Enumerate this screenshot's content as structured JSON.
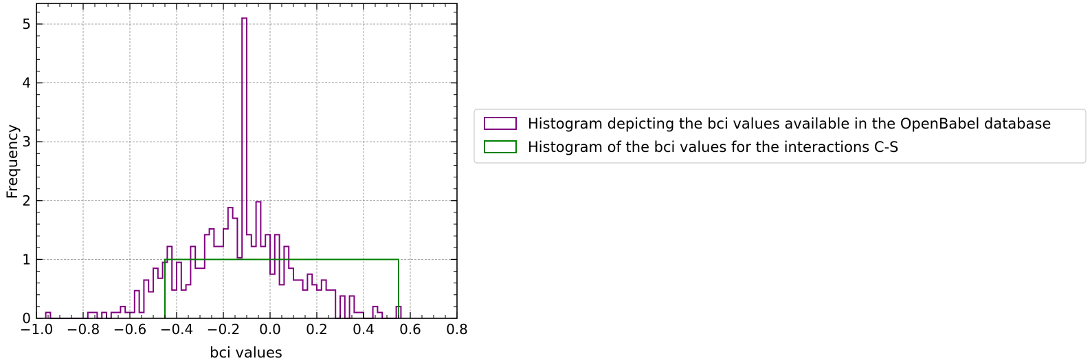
{
  "chart_data": {
    "type": "histogram",
    "xlabel": "bci values",
    "ylabel": "Frequency",
    "xlim": [
      -1.0,
      0.8
    ],
    "ylim": [
      0,
      5.35
    ],
    "grid": true,
    "legend_placement": "outside-right",
    "x_ticks": [
      -1.0,
      -0.8,
      -0.6,
      -0.4,
      -0.2,
      0.0,
      0.2,
      0.4,
      0.6,
      0.8
    ],
    "x_tick_labels": [
      "−1.0",
      "−0.8",
      "−0.6",
      "−0.4",
      "−0.2",
      "0.0",
      "0.2",
      "0.4",
      "0.6",
      "0.8"
    ],
    "y_ticks": [
      0,
      1,
      2,
      3,
      4,
      5
    ],
    "y_tick_labels": [
      "0",
      "1",
      "2",
      "3",
      "4",
      "5"
    ],
    "series": [
      {
        "name": "Histogram depicting the bci values available in the OpenBabel database",
        "color": "#800080",
        "bin_start": -0.96,
        "bin_width": 0.02,
        "values": [
          0.1,
          0.0,
          0.0,
          0.0,
          0.0,
          0.0,
          0.0,
          0.0,
          0.0,
          0.1,
          0.1,
          0.0,
          0.1,
          0.0,
          0.1,
          0.1,
          0.2,
          0.1,
          0.1,
          0.47,
          0.1,
          0.65,
          0.45,
          0.85,
          0.68,
          0.95,
          1.22,
          0.48,
          0.95,
          0.48,
          0.57,
          1.22,
          0.85,
          0.85,
          1.42,
          1.52,
          1.22,
          1.22,
          1.52,
          1.88,
          1.7,
          1.03,
          5.1,
          1.42,
          1.22,
          1.98,
          1.22,
          1.42,
          0.75,
          1.42,
          0.57,
          1.22,
          0.85,
          0.65,
          0.65,
          0.48,
          0.75,
          0.57,
          0.48,
          0.65,
          0.48,
          0.48,
          0.0,
          0.38,
          0.0,
          0.38,
          0.1,
          0.1,
          0.0,
          0.0,
          0.2,
          0.1,
          0.0,
          0.0,
          0.0,
          0.2
        ]
      },
      {
        "name": "Histogram of the bci values for the interactions C-S",
        "color": "#008000",
        "bin_start": -0.45,
        "bin_width": 1.0,
        "values": [
          1.0
        ]
      }
    ]
  }
}
